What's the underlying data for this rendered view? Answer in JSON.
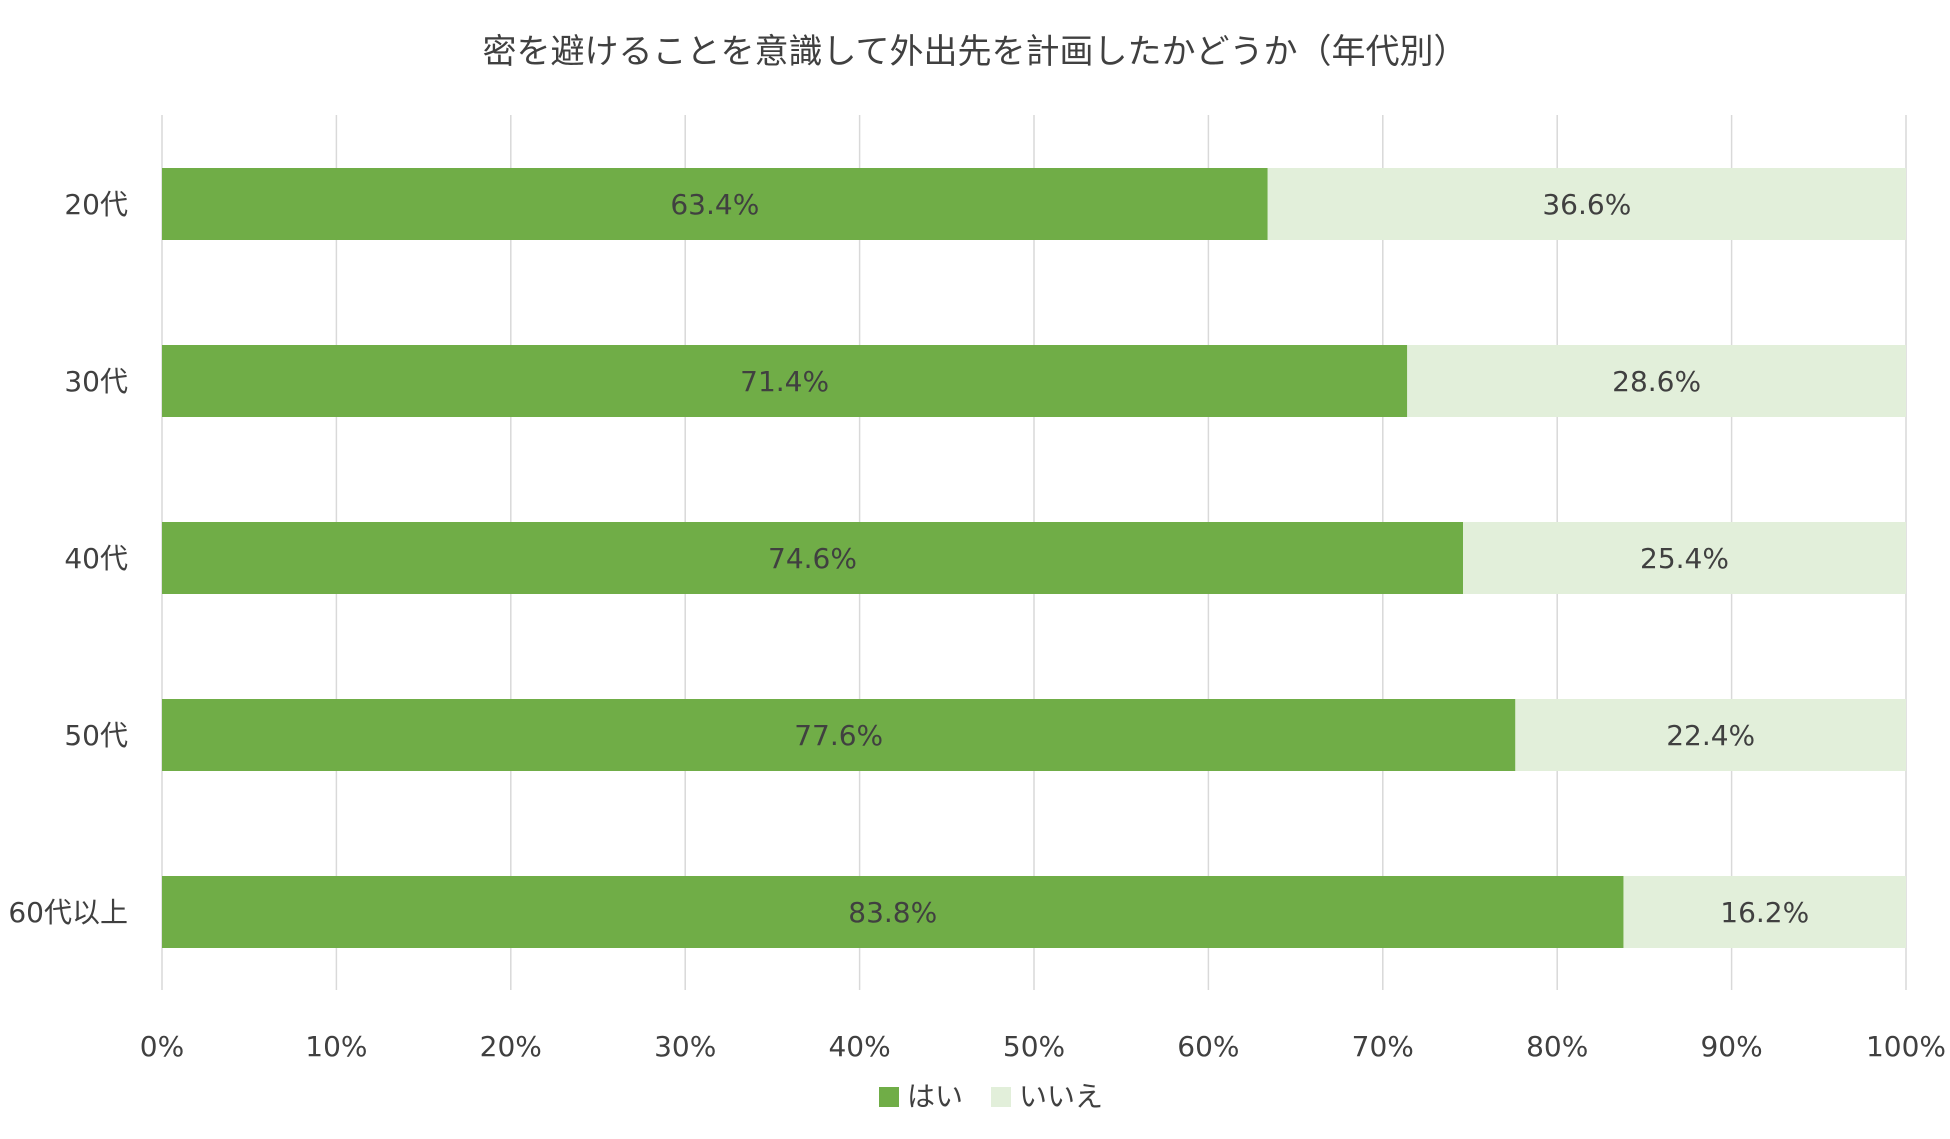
{
  "chart_data": {
    "type": "bar",
    "orientation": "horizontal",
    "stacked": "percent",
    "title": "密を避けることを意識して外出先を計画したかどうか（年代別）",
    "categories": [
      "20代",
      "30代",
      "40代",
      "50代",
      "60代以上"
    ],
    "series": [
      {
        "name": "はい",
        "color": "#70ad47",
        "values": [
          63.4,
          71.4,
          74.6,
          77.6,
          83.8
        ],
        "labels": [
          "63.4%",
          "71.4%",
          "74.6%",
          "77.6%",
          "83.8%"
        ]
      },
      {
        "name": "いいえ",
        "color": "#e2efda",
        "values": [
          36.6,
          28.6,
          25.4,
          22.4,
          16.2
        ],
        "labels": [
          "36.6%",
          "28.6%",
          "25.4%",
          "22.4%",
          "16.2%"
        ]
      }
    ],
    "xlim": [
      0,
      100
    ],
    "xticks": [
      "0%",
      "10%",
      "20%",
      "30%",
      "40%",
      "50%",
      "60%",
      "70%",
      "80%",
      "90%",
      "100%"
    ],
    "grid": true,
    "legend_position": "bottom"
  }
}
